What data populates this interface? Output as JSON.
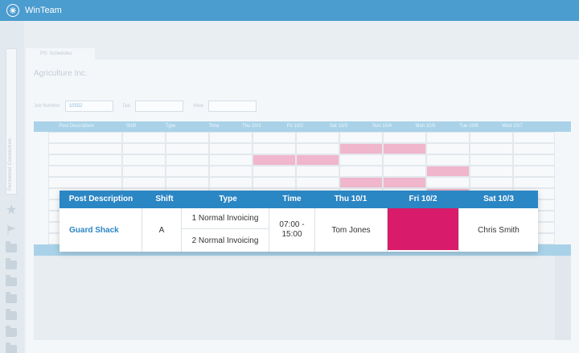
{
  "app": {
    "title": "WinTeam"
  },
  "left_rail": {
    "panel_label": "Personnel Connection"
  },
  "background": {
    "tab_label": "PS: Schedules",
    "company": "Agriculture Inc.",
    "filters": {
      "job_label": "Job Number",
      "job_value": "10552",
      "date_label": "Dat",
      "view_label": "View"
    },
    "columns": [
      "Post Description",
      "Shift",
      "Type",
      "Time",
      "Thu 10/1",
      "Fri 10/2",
      "Sat 10/3",
      "Sun 10/4",
      "Mon 10/5",
      "Tue 10/6",
      "Wed 10/7"
    ]
  },
  "popup": {
    "headers": [
      "Post Description",
      "Shift",
      "Type",
      "Time",
      "Thu 10/1",
      "Fri 10/2",
      "Sat 10/3"
    ],
    "row": {
      "post": "Guard Shack",
      "shift": "A",
      "type_1": "1 Normal Invoicing",
      "type_2": "2 Normal Invoicing",
      "time": "07:00 - 15:00",
      "thu": "Tom Jones",
      "fri": "",
      "sat": "Chris Smith"
    },
    "colors": {
      "header": "#2b86c4",
      "fri_cell": "#d81b6a",
      "link": "#2b86c4"
    }
  }
}
